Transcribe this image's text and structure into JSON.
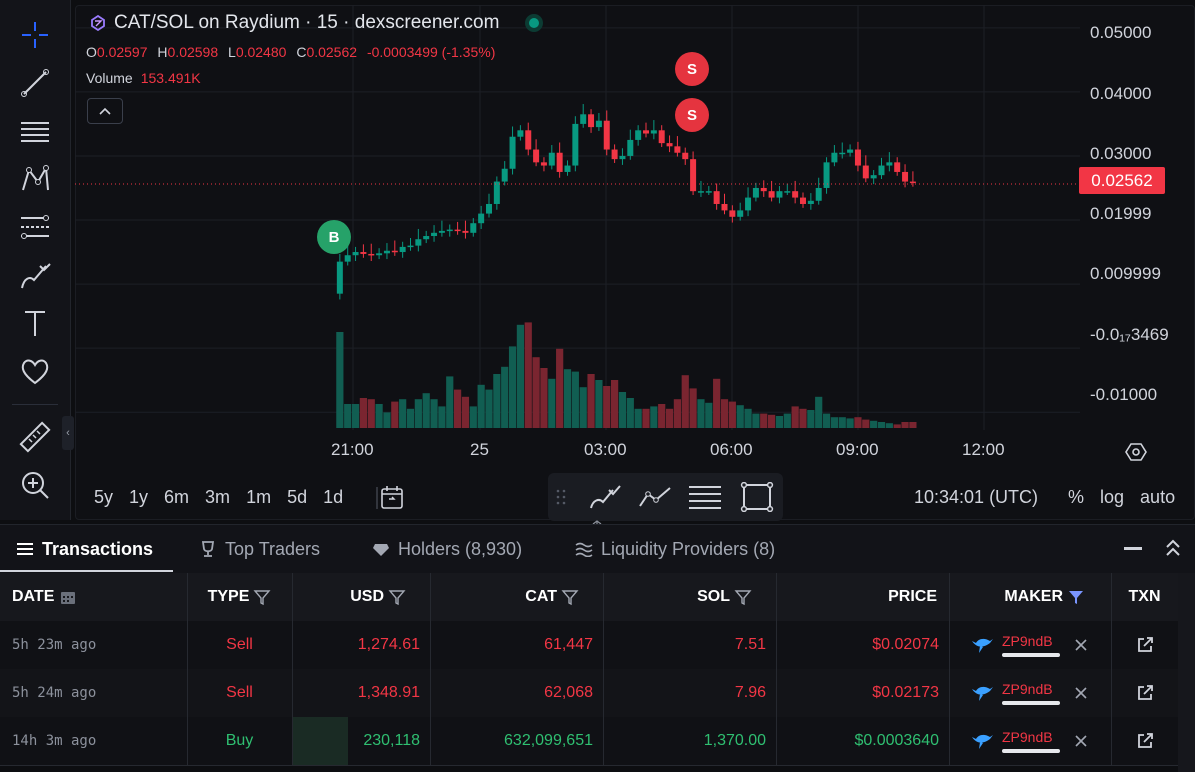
{
  "header": {
    "title": "CAT/SOL on Raydium · 15 · dexscreener.com",
    "ohlc": {
      "open_label": "O",
      "open": "0.02597",
      "high_label": "H",
      "high": "0.02598",
      "low_label": "L",
      "low": "0.02480",
      "close_label": "C",
      "close": "0.02562",
      "change": "-0.0003499 (-1.35%)"
    },
    "volume_label": "Volume",
    "volume": "153.491K"
  },
  "chart": {
    "current_price": "0.02562",
    "markers": [
      "B",
      "S",
      "S"
    ],
    "y_ticks": [
      "0.05000",
      "0.04000",
      "0.03000",
      "0.01999",
      "0.009999",
      "-0.0₁₇3469",
      "-0.01000"
    ],
    "x_ticks": [
      "21:00",
      "25",
      "03:00",
      "06:00",
      "09:00",
      "12:00"
    ],
    "colors": {
      "up": "#089981",
      "down": "#f23645",
      "vol_up": "#115e52",
      "vol_down": "#7a2530"
    }
  },
  "chart_data": {
    "type": "candlestick",
    "title": "CAT/SOL on Raydium · 15 · dexscreener.com",
    "xlabel": "",
    "ylabel": "",
    "x": [
      "21:00",
      "25",
      "03:00",
      "06:00",
      "09:00",
      "12:00"
    ],
    "ylim": [
      -0.012,
      0.052
    ],
    "last_close": 0.02562
  },
  "toolbar": {
    "ranges": [
      "5y",
      "1y",
      "6m",
      "3m",
      "1m",
      "5d",
      "1d"
    ],
    "clock": "10:34:01 (UTC)",
    "scale_buttons": [
      "%",
      "log",
      "auto"
    ]
  },
  "tabs": {
    "transactions": "Transactions",
    "top_traders": "Top Traders",
    "holders": "Holders (8,930)",
    "liquidity": "Liquidity Providers (8)"
  },
  "table": {
    "headers": {
      "date": "DATE",
      "type": "TYPE",
      "usd": "USD",
      "cat": "CAT",
      "sol": "SOL",
      "price": "PRICE",
      "maker": "MAKER",
      "txn": "TXN"
    },
    "rows": [
      {
        "date": "5h 23m ago",
        "type": "Sell",
        "usd": "1,274.61",
        "cat": "61,447",
        "sol": "7.51",
        "price": "$0.02074",
        "maker": "ZP9ndB"
      },
      {
        "date": "5h 24m ago",
        "type": "Sell",
        "usd": "1,348.91",
        "cat": "62,068",
        "sol": "7.96",
        "price": "$0.02173",
        "maker": "ZP9ndB"
      },
      {
        "date": "14h 3m ago",
        "type": "Buy",
        "usd": "230,118",
        "cat": "632,099,651",
        "sol": "1,370.00",
        "price": "$0.0003640",
        "maker": "ZP9ndB"
      }
    ]
  }
}
